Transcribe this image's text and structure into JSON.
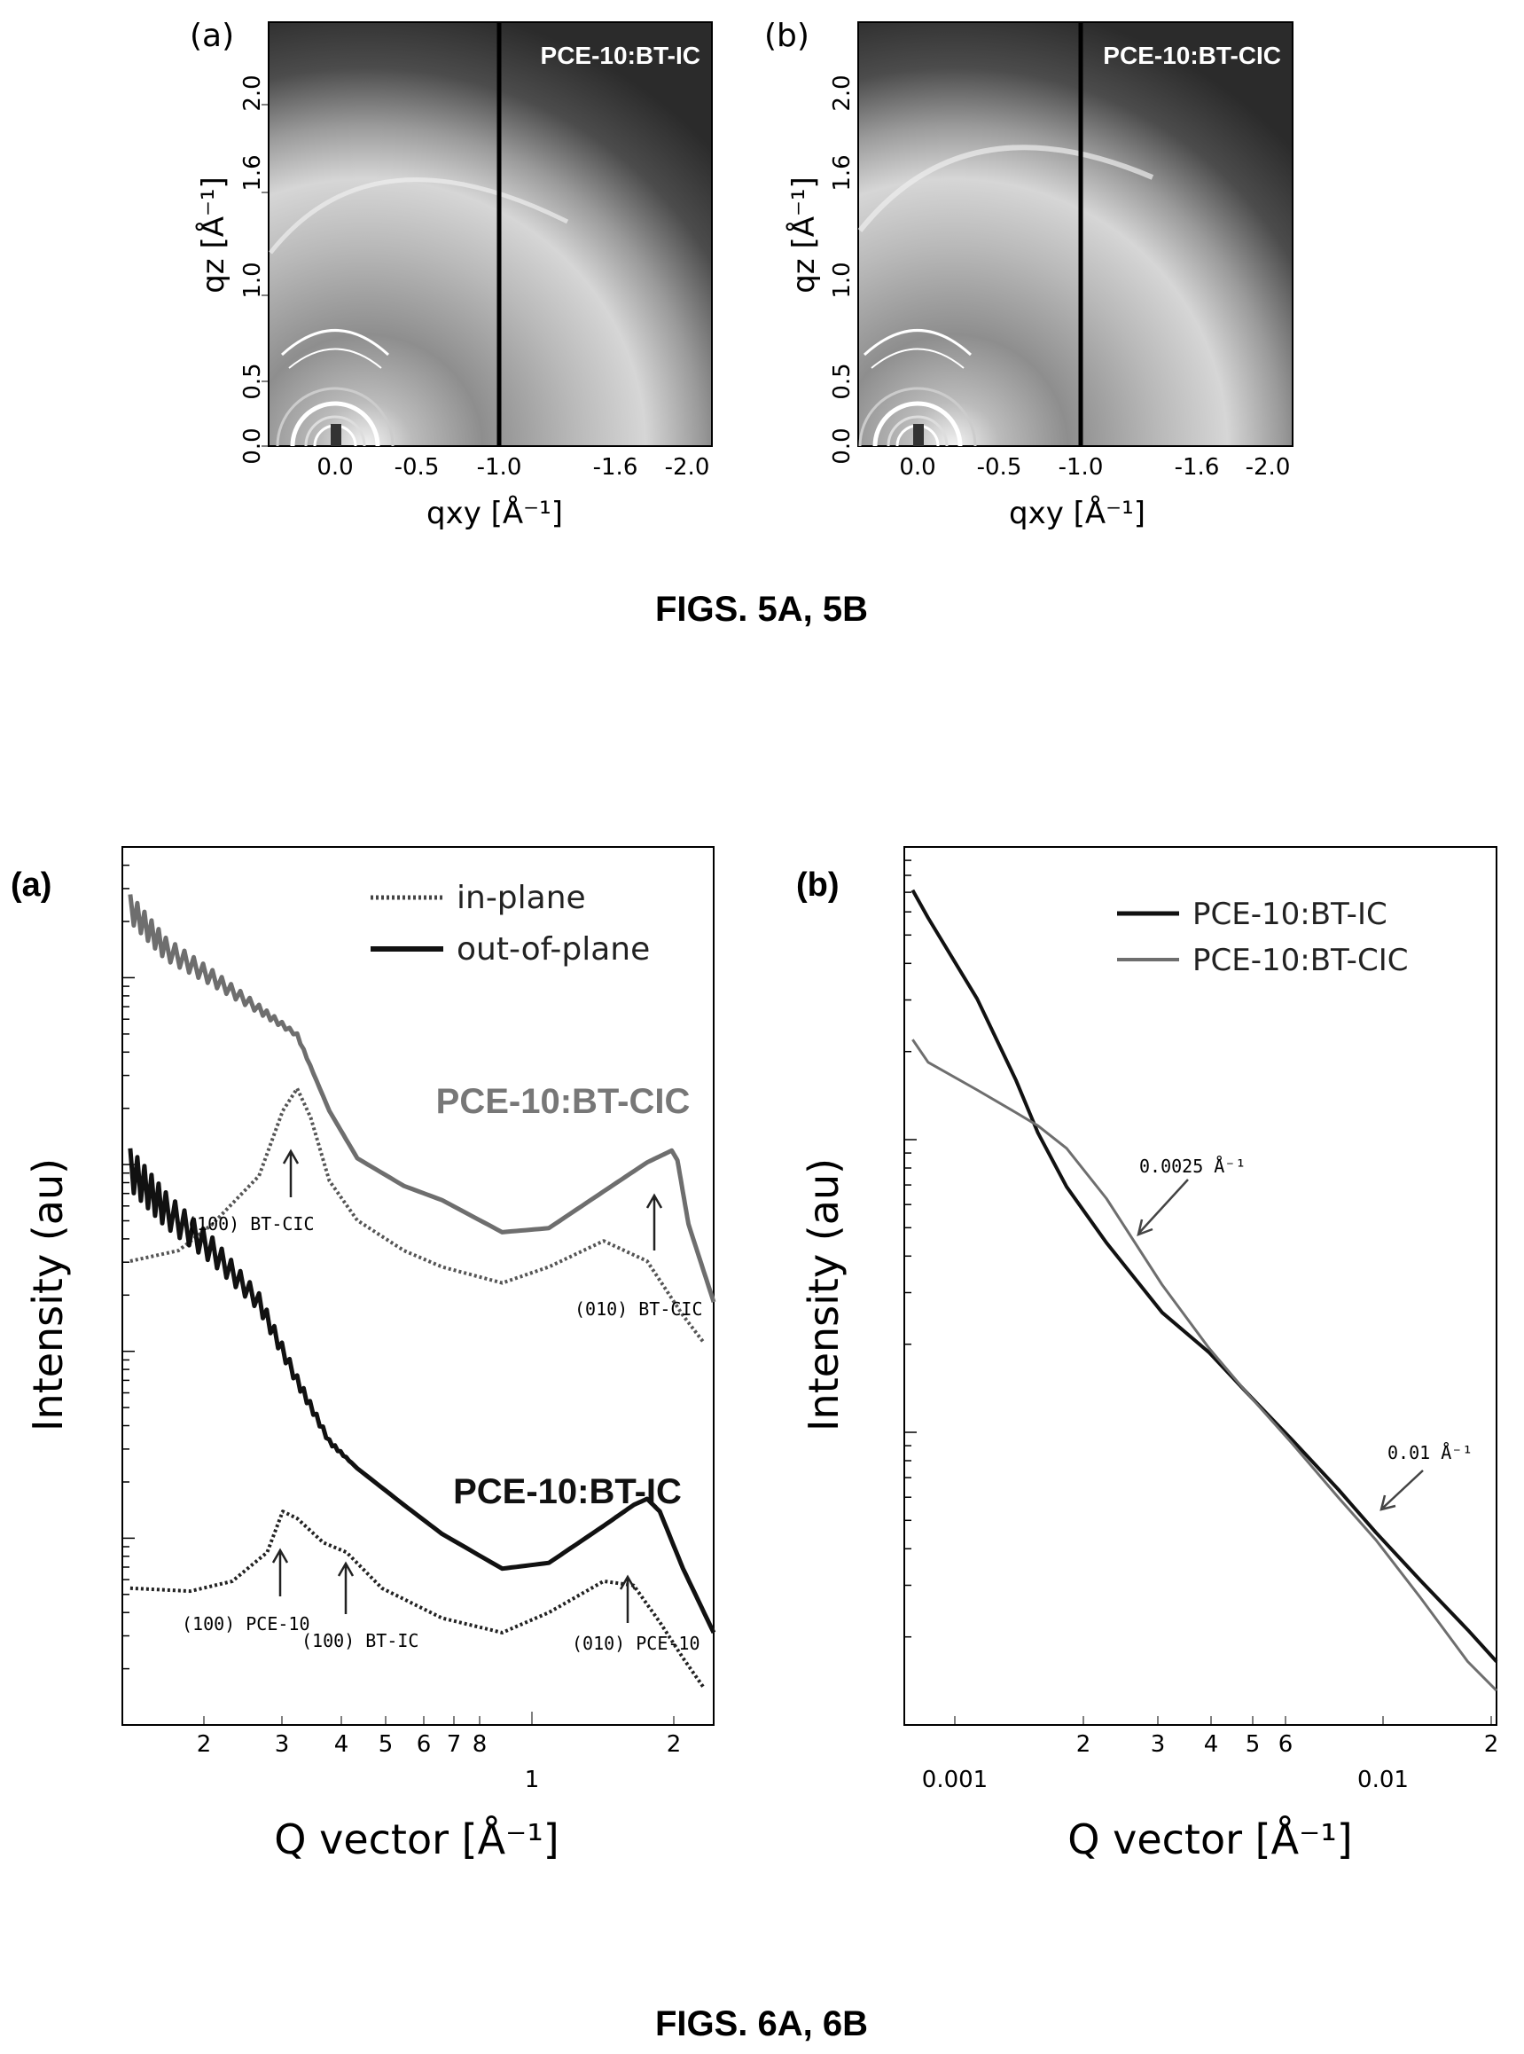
{
  "fig5": {
    "caption": "FIGS. 5A, 5B",
    "panels": [
      {
        "panel_label": "(a)",
        "sample_label": "PCE-10:BT-IC",
        "qz_label": "qz [Å⁻¹]",
        "qxy_label": "qxy [Å⁻¹]",
        "y_ticks": [
          "0.0",
          "0.5",
          "1.0",
          "1.6",
          "2.0"
        ],
        "x_ticks": [
          "0.0",
          "-0.5",
          "-1.0",
          "-1.6",
          "-2.0"
        ]
      },
      {
        "panel_label": "(b)",
        "sample_label": "PCE-10:BT-CIC",
        "qz_label": "qz [Å⁻¹]",
        "qxy_label": "qxy [Å⁻¹]",
        "y_ticks": [
          "0.0",
          "0.5",
          "1.0",
          "1.6",
          "2.0"
        ],
        "x_ticks": [
          "0.0",
          "-0.5",
          "-1.0",
          "-1.6",
          "-2.0"
        ]
      }
    ]
  },
  "fig6": {
    "caption": "FIGS. 6A, 6B",
    "panel_a": {
      "panel_label": "(a)",
      "legend": {
        "in_plane": "in-plane",
        "out_of_plane": "out-of-plane"
      },
      "sample_top": "PCE-10:BT-CIC",
      "sample_bottom": "PCE-10:BT-IC",
      "ylabel": "Intensity (au)",
      "xlabel": "Q vector [Å⁻¹]",
      "x_tick_labels": [
        "2",
        "3",
        "4",
        "5",
        "6",
        "7",
        "8",
        "1",
        "2"
      ],
      "annotations": {
        "cic_100": "(100) BT-CIC",
        "cic_010": "(010) BT-CIC",
        "pce_100": "(100) PCE-10",
        "btic_100": "(100) BT-IC",
        "pce_010": "(010) PCE-10"
      }
    },
    "panel_b": {
      "panel_label": "(b)",
      "legend": {
        "btic": "PCE-10:BT-IC",
        "btcic": "PCE-10:BT-CIC"
      },
      "ylabel": "Intensity (au)",
      "xlabel": "Q vector [Å⁻¹]",
      "x_tick_labels": [
        "0.001",
        "2",
        "3",
        "4",
        "5",
        "6",
        "0.01",
        "2"
      ],
      "annotations": {
        "a1": "0.0025 Å⁻¹",
        "a2": "0.01 Å⁻¹"
      }
    }
  },
  "chart_data": [
    {
      "type": "line",
      "panel": "6A",
      "xscale": "log",
      "yscale": "log",
      "xlabel": "Q vector [Å⁻¹]",
      "ylabel": "Intensity (au)",
      "xlim": [
        0.13,
        2.2
      ],
      "series": [
        {
          "name": "PCE-10:BT-CIC out-of-plane",
          "style": "solid",
          "color": "#6e6e6e",
          "x": [
            0.135,
            0.16,
            0.2,
            0.25,
            0.3,
            0.35,
            0.4,
            0.5,
            0.6,
            0.8,
            1.0,
            1.3,
            1.6,
            1.8,
            1.85,
            1.95,
            2.2
          ],
          "y": [
            60,
            40,
            30,
            22,
            17,
            8,
            5,
            3.8,
            3.3,
            2.4,
            2.5,
            3.6,
            4.8,
            5.4,
            4.9,
            2.6,
            1.2
          ]
        },
        {
          "name": "PCE-10:BT-CIC in-plane",
          "style": "dotted",
          "color": "#555555",
          "x": [
            0.135,
            0.17,
            0.2,
            0.25,
            0.28,
            0.3,
            0.32,
            0.35,
            0.4,
            0.5,
            0.6,
            0.8,
            1.0,
            1.3,
            1.6,
            1.9,
            2.1
          ],
          "y": [
            1.8,
            2.0,
            2.6,
            4.2,
            8,
            10,
            7.5,
            4,
            2.7,
            2.0,
            1.7,
            1.45,
            1.7,
            2.2,
            1.8,
            1.05,
            0.8
          ]
        },
        {
          "name": "PCE-10:BT-IC out-of-plane",
          "style": "solid",
          "color": "#111111",
          "x": [
            0.135,
            0.16,
            0.2,
            0.25,
            0.3,
            0.35,
            0.4,
            0.5,
            0.6,
            0.8,
            1.0,
            1.3,
            1.5,
            1.6,
            1.7,
            1.9,
            2.2
          ],
          "y": [
            4.5,
            3.0,
            2.0,
            1.2,
            0.55,
            0.3,
            0.23,
            0.16,
            0.12,
            0.085,
            0.09,
            0.13,
            0.16,
            0.17,
            0.15,
            0.085,
            0.045
          ]
        },
        {
          "name": "PCE-10:BT-IC in-plane",
          "style": "dotted",
          "color": "#222222",
          "x": [
            0.135,
            0.18,
            0.22,
            0.26,
            0.28,
            0.3,
            0.34,
            0.38,
            0.45,
            0.6,
            0.8,
            1.0,
            1.3,
            1.5,
            1.7,
            1.9,
            2.1
          ],
          "y": [
            0.07,
            0.068,
            0.075,
            0.1,
            0.15,
            0.14,
            0.11,
            0.1,
            0.07,
            0.052,
            0.045,
            0.055,
            0.075,
            0.072,
            0.05,
            0.035,
            0.026
          ]
        }
      ],
      "annotations": [
        "(100) BT-CIC",
        "(010) BT-CIC",
        "(100) PCE-10",
        "(100) BT-IC",
        "(010) PCE-10"
      ]
    },
    {
      "type": "line",
      "panel": "6B",
      "xscale": "log",
      "yscale": "log",
      "xlabel": "Q vector [Å⁻¹]",
      "ylabel": "Intensity (au)",
      "xlim": [
        0.00088,
        0.021
      ],
      "series": [
        {
          "name": "PCE-10:BT-IC",
          "color": "#111111",
          "x": [
            0.00092,
            0.001,
            0.0013,
            0.0016,
            0.0018,
            0.0021,
            0.0026,
            0.0035,
            0.0045,
            0.0055,
            0.007,
            0.009,
            0.011,
            0.014,
            0.018,
            0.021
          ],
          "y": [
            600,
            480,
            250,
            130,
            85,
            55,
            35,
            20,
            14.5,
            10.5,
            7.2,
            4.8,
            3.4,
            2.3,
            1.55,
            1.2
          ]
        },
        {
          "name": "PCE-10:BT-CIC",
          "color": "#6e6e6e",
          "x": [
            0.00092,
            0.001,
            0.0013,
            0.0016,
            0.0018,
            0.0021,
            0.0026,
            0.0035,
            0.0045,
            0.0055,
            0.007,
            0.009,
            0.011,
            0.014,
            0.018,
            0.021
          ],
          "y": [
            180,
            150,
            120,
            100,
            90,
            75,
            50,
            25,
            15,
            10.5,
            7,
            4.5,
            3.2,
            2,
            1.2,
            0.95
          ]
        }
      ],
      "annotations": [
        "0.0025 Å⁻¹",
        "0.01 Å⁻¹"
      ]
    }
  ]
}
